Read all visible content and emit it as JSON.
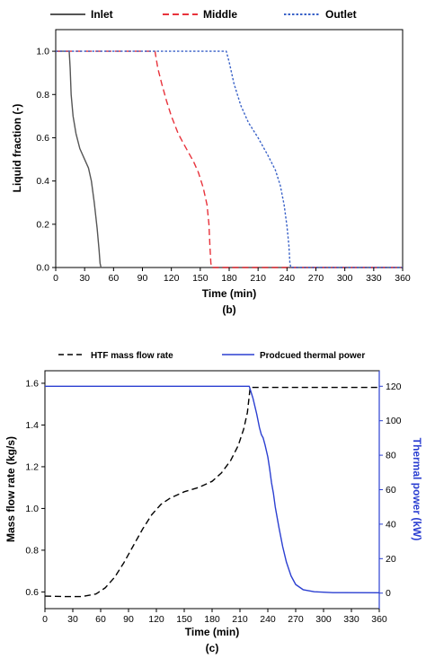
{
  "chart_data": [
    {
      "type": "line",
      "caption": "(b)",
      "xlabel": "Time (min)",
      "ylabel": "Liquid fraction (-)",
      "xlim": [
        0,
        360
      ],
      "ylim": [
        0,
        1.1
      ],
      "x_ticks": [
        0,
        30,
        60,
        90,
        120,
        150,
        180,
        210,
        240,
        270,
        300,
        330,
        360
      ],
      "y_ticks": [
        "0.0",
        "0.2",
        "0.4",
        "0.6",
        "0.8",
        "1.0"
      ],
      "legend_position": "top",
      "series": [
        {
          "name": "Inlet",
          "color": "#555555",
          "style": "solid",
          "points": [
            [
              0,
              1.0
            ],
            [
              14,
              1.0
            ],
            [
              15,
              0.92
            ],
            [
              16,
              0.8
            ],
            [
              18,
              0.7
            ],
            [
              21,
              0.62
            ],
            [
              25,
              0.55
            ],
            [
              30,
              0.5
            ],
            [
              34,
              0.46
            ],
            [
              37,
              0.4
            ],
            [
              40,
              0.3
            ],
            [
              43,
              0.18
            ],
            [
              45,
              0.08
            ],
            [
              46,
              0.02
            ],
            [
              47,
              0.0
            ],
            [
              360,
              0.0
            ]
          ]
        },
        {
          "name": "Middle",
          "color": "#e8333c",
          "style": "dashed",
          "points": [
            [
              0,
              1.0
            ],
            [
              103,
              1.0
            ],
            [
              106,
              0.92
            ],
            [
              110,
              0.85
            ],
            [
              115,
              0.77
            ],
            [
              120,
              0.7
            ],
            [
              127,
              0.62
            ],
            [
              133,
              0.57
            ],
            [
              138,
              0.53
            ],
            [
              143,
              0.49
            ],
            [
              148,
              0.44
            ],
            [
              153,
              0.37
            ],
            [
              157,
              0.29
            ],
            [
              159,
              0.2
            ],
            [
              160,
              0.1
            ],
            [
              161,
              0.02
            ],
            [
              162,
              0.0
            ],
            [
              360,
              0.0
            ]
          ]
        },
        {
          "name": "Outlet",
          "color": "#3a62c8",
          "style": "dotted",
          "points": [
            [
              0,
              1.0
            ],
            [
              177,
              1.0
            ],
            [
              180,
              0.95
            ],
            [
              185,
              0.85
            ],
            [
              192,
              0.75
            ],
            [
              200,
              0.67
            ],
            [
              210,
              0.6
            ],
            [
              220,
              0.52
            ],
            [
              228,
              0.45
            ],
            [
              233,
              0.38
            ],
            [
              237,
              0.29
            ],
            [
              240,
              0.19
            ],
            [
              242,
              0.1
            ],
            [
              243,
              0.02
            ],
            [
              244,
              0.0
            ],
            [
              360,
              0.0
            ]
          ]
        }
      ]
    },
    {
      "type": "line",
      "caption": "(c)",
      "xlabel": "Time (min)",
      "ylabel": "Mass flow rate (kg/s)",
      "ylabel_right": "Thermal power (kW)",
      "ylabel_right_color": "#2b3fd1",
      "xlim": [
        0,
        360
      ],
      "ylim": [
        0.52,
        1.66
      ],
      "ylim_right": [
        -9,
        129
      ],
      "x_ticks": [
        0,
        30,
        60,
        90,
        120,
        150,
        180,
        210,
        240,
        270,
        300,
        330,
        360
      ],
      "y_ticks": [
        "0.6",
        "0.8",
        "1.0",
        "1.2",
        "1.4",
        "1.6"
      ],
      "y_ticks_right": [
        "0",
        "20",
        "40",
        "60",
        "80",
        "100",
        "120"
      ],
      "legend_position": "top",
      "series": [
        {
          "name": "HTF mass flow rate",
          "axis": "left",
          "color": "#000000",
          "style": "dashed",
          "points": [
            [
              0,
              0.58
            ],
            [
              20,
              0.578
            ],
            [
              40,
              0.578
            ],
            [
              55,
              0.59
            ],
            [
              65,
              0.62
            ],
            [
              75,
              0.67
            ],
            [
              85,
              0.74
            ],
            [
              95,
              0.82
            ],
            [
              105,
              0.9
            ],
            [
              115,
              0.97
            ],
            [
              125,
              1.02
            ],
            [
              135,
              1.05
            ],
            [
              150,
              1.08
            ],
            [
              165,
              1.1
            ],
            [
              180,
              1.13
            ],
            [
              190,
              1.17
            ],
            [
              200,
              1.23
            ],
            [
              208,
              1.3
            ],
            [
              214,
              1.38
            ],
            [
              218,
              1.46
            ],
            [
              221,
              1.58
            ],
            [
              360,
              1.58
            ]
          ]
        },
        {
          "name": "Prodcued thermal power",
          "axis": "right",
          "color": "#2b3fd1",
          "style": "solid",
          "points": [
            [
              0,
              120
            ],
            [
              220,
              120
            ],
            [
              224,
              113
            ],
            [
              228,
              104
            ],
            [
              231,
              96
            ],
            [
              233,
              92
            ],
            [
              235,
              90
            ],
            [
              237,
              86
            ],
            [
              240,
              79
            ],
            [
              242,
              72
            ],
            [
              244,
              64
            ],
            [
              246,
              58
            ],
            [
              248,
              50
            ],
            [
              252,
              38
            ],
            [
              256,
              27
            ],
            [
              260,
              18
            ],
            [
              265,
              10
            ],
            [
              270,
              5
            ],
            [
              278,
              2
            ],
            [
              290,
              0.8
            ],
            [
              310,
              0.3
            ],
            [
              360,
              0.2
            ]
          ]
        }
      ]
    }
  ]
}
